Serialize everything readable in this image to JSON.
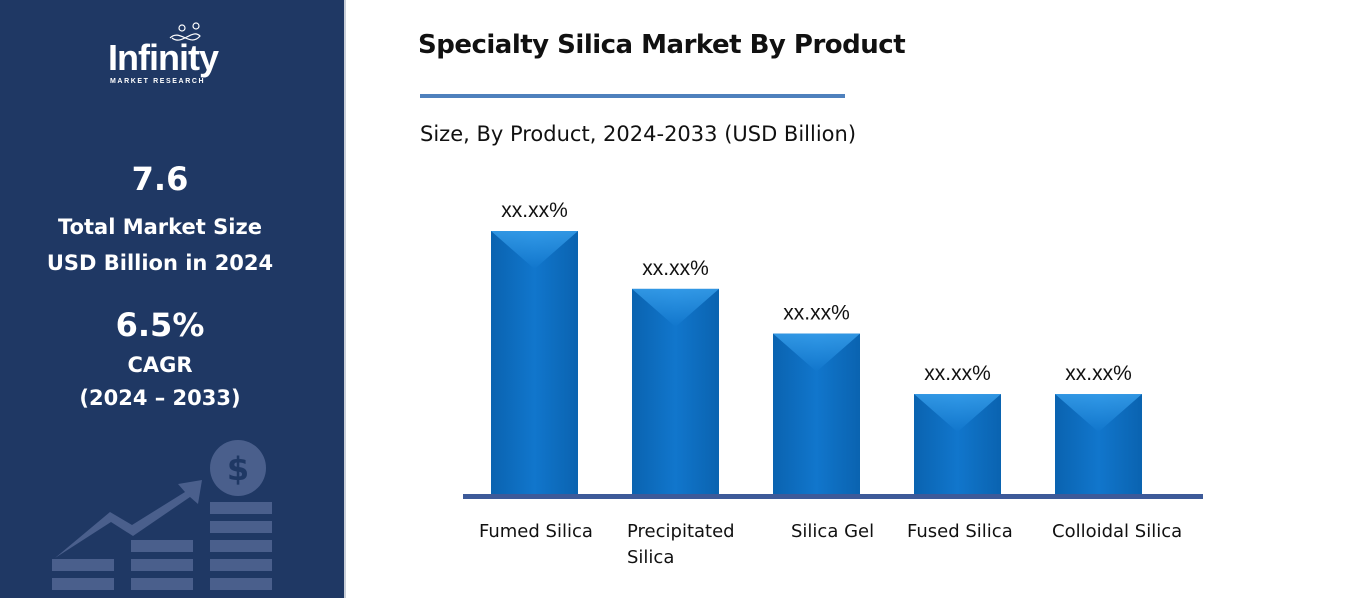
{
  "sidebar": {
    "logo_text": "Infinity",
    "logo_subtext": "MARKET RESEARCH",
    "market_size_value": "7.6",
    "market_size_label1": "Total Market Size",
    "market_size_label2": "USD Billion in 2024",
    "cagr_value": "6.5%",
    "cagr_label": "CAGR",
    "cagr_period": "(2024 – 2033)",
    "background_color": "#1f3864",
    "decor_icon": "growth-chart-dollar-icon"
  },
  "chart_data": {
    "type": "bar",
    "title": "Specialty Silica Market By Product",
    "subtitle": "Size, By Product, 2024-2033 (USD Billion)",
    "categories": [
      "Fumed Silica",
      "Precipitated Silica",
      "Silica Gel",
      "Fused Silica",
      "Colloidal Silica"
    ],
    "values": [
      100,
      78,
      61,
      38,
      38
    ],
    "value_note": "relative bar heights; no axis printed",
    "data_labels": [
      "xx.xx%",
      "xx.xx%",
      "xx.xx%",
      "xx.xx%",
      "xx.xx%"
    ],
    "grid": false,
    "bar_color": "#0a6fc2",
    "axis_color": "#3d5a99"
  }
}
